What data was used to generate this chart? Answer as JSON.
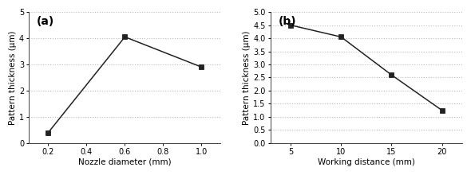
{
  "chart_a": {
    "label": "(a)",
    "x": [
      0.2,
      0.6,
      1.0
    ],
    "y": [
      0.4,
      4.05,
      2.9
    ],
    "xlabel": "Nozzle diameter (mm)",
    "ylabel": "Pattern thickness (μm)",
    "xlim": [
      0.1,
      1.1
    ],
    "ylim": [
      0.0,
      5.0
    ],
    "xticks": [
      0.2,
      0.4,
      0.6,
      0.8,
      1.0
    ],
    "yticks": [
      0,
      1,
      2,
      3,
      4,
      5
    ],
    "ytick_labels": [
      "0",
      "1",
      "2",
      "3",
      "4",
      "5"
    ]
  },
  "chart_b": {
    "label": "(b)",
    "x": [
      5,
      10,
      15,
      20
    ],
    "y": [
      4.5,
      4.05,
      2.6,
      1.25
    ],
    "xlabel": "Working distance (mm)",
    "ylabel": "Pattern thickness (μm)",
    "xlim": [
      3,
      22
    ],
    "ylim": [
      0.0,
      5.0
    ],
    "xticks": [
      5,
      10,
      15,
      20
    ],
    "yticks": [
      0.0,
      0.5,
      1.0,
      1.5,
      2.0,
      2.5,
      3.0,
      3.5,
      4.0,
      4.5,
      5.0
    ],
    "ytick_labels": [
      "0.0",
      "0.5",
      "1.0",
      "1.5",
      "2.0",
      "2.5",
      "3.0",
      "3.5",
      "4.0",
      "4.5",
      "5.0"
    ]
  },
  "line_color": "#222222",
  "marker": "s",
  "marker_size": 4,
  "marker_color": "#222222",
  "line_width": 1.1,
  "grid_color": "#bbbbbb",
  "grid_style": "dotted",
  "label_fontsize": 7.5,
  "tick_fontsize": 7,
  "panel_label_fontsize": 10,
  "bg_color": "#ffffff"
}
